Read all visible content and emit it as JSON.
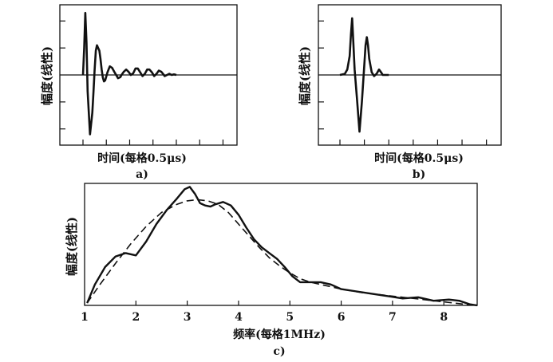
{
  "chart_data": [
    {
      "id": "a",
      "type": "line",
      "caption": "a)",
      "xlabel": "时间(每格0.5μs)",
      "ylabel": "幅度(线性)",
      "x_unit_label": "div",
      "xlim": [
        0,
        6.6
      ],
      "ylim": [
        -1.3,
        1.3
      ],
      "x_ticks": [
        0,
        1,
        2,
        3,
        4,
        5,
        6
      ],
      "y_ticks": [
        -1,
        -0.5,
        0.5,
        1
      ],
      "baseline_y": 0,
      "grid": false,
      "series": [
        {
          "x": [
            0,
            0.05,
            0.1,
            0.15,
            0.2,
            0.3,
            0.4,
            0.45,
            0.5,
            0.55,
            0.6,
            0.7,
            0.75,
            0.8,
            0.85,
            0.9,
            0.95,
            1.05,
            1.15,
            1.25,
            1.35,
            1.45,
            1.5,
            1.6,
            1.65,
            1.75,
            1.85,
            1.95,
            2.05,
            2.15,
            2.25,
            2.35,
            2.45,
            2.55,
            2.65,
            2.75,
            2.85,
            2.95,
            3.05,
            3.15,
            3.25,
            3.35,
            3.45,
            3.5,
            3.6,
            3.7,
            3.8,
            3.9,
            4.0
          ],
          "y": [
            0,
            0.5,
            1.15,
            0.6,
            -0.3,
            -1.1,
            -0.7,
            -0.3,
            0.1,
            0.45,
            0.55,
            0.45,
            0.3,
            0.1,
            -0.05,
            -0.12,
            -0.1,
            0.05,
            0.16,
            0.13,
            0.05,
            -0.02,
            -0.06,
            -0.04,
            0.0,
            0.06,
            0.1,
            0.06,
            0.0,
            0.03,
            0.12,
            0.12,
            0.05,
            -0.02,
            0.02,
            0.1,
            0.1,
            0.05,
            -0.02,
            0.02,
            0.08,
            0.06,
            0.01,
            -0.02,
            0.0,
            0.02,
            0.0,
            0.01,
            0.0
          ]
        }
      ]
    },
    {
      "id": "b",
      "type": "line",
      "caption": "b)",
      "xlabel": "时间(每格0.5μs)",
      "ylabel": "幅度(线性)",
      "xlim": [
        0,
        6.6
      ],
      "ylim": [
        -1.3,
        1.3
      ],
      "x_ticks": [
        0,
        1,
        2,
        3,
        4,
        5,
        6
      ],
      "y_ticks": [
        -1,
        -0.5,
        0.5,
        1
      ],
      "baseline_y": 0,
      "grid": false,
      "series": [
        {
          "x": [
            0,
            0.2,
            0.3,
            0.4,
            0.45,
            0.5,
            0.55,
            0.6,
            0.7,
            0.8,
            0.9,
            1.0,
            1.05,
            1.1,
            1.15,
            1.2,
            1.3,
            1.4,
            1.5,
            1.6,
            1.7,
            1.75,
            1.8,
            1.9,
            2.0
          ],
          "y": [
            0,
            0.02,
            0.1,
            0.35,
            0.75,
            1.05,
            0.6,
            0.1,
            -0.45,
            -1.05,
            -0.5,
            0.2,
            0.55,
            0.7,
            0.55,
            0.3,
            0.05,
            -0.02,
            0.02,
            0.1,
            0.04,
            0.0,
            0.0,
            0.0,
            0.0
          ]
        }
      ]
    },
    {
      "id": "c",
      "type": "line",
      "caption": "c)",
      "xlabel": "频率(每格1MHz)",
      "ylabel": "幅度(线性)",
      "xlim": [
        1,
        8.65
      ],
      "ylim": [
        0,
        1.05
      ],
      "x_ticks": [
        1,
        2,
        3,
        4,
        5,
        6,
        7,
        8
      ],
      "x_tick_labels": [
        "1",
        "2",
        "3",
        "4",
        "5",
        "6",
        "7",
        "8"
      ],
      "grid": false,
      "series": [
        {
          "style": "solid",
          "x": [
            1.05,
            1.2,
            1.4,
            1.6,
            1.8,
            2.0,
            2.2,
            2.4,
            2.6,
            2.8,
            2.95,
            3.05,
            3.15,
            3.25,
            3.35,
            3.45,
            3.55,
            3.7,
            3.85,
            4.0,
            4.15,
            4.3,
            4.45,
            4.6,
            4.75,
            4.9,
            5.05,
            5.2,
            5.4,
            5.6,
            5.8,
            6.0,
            6.3,
            6.6,
            6.9,
            7.2,
            7.5,
            7.8,
            8.1,
            8.3,
            8.5,
            8.65
          ],
          "y": [
            0.02,
            0.18,
            0.33,
            0.42,
            0.45,
            0.43,
            0.55,
            0.7,
            0.82,
            0.92,
            1.0,
            1.02,
            0.96,
            0.88,
            0.86,
            0.85,
            0.87,
            0.89,
            0.86,
            0.78,
            0.67,
            0.57,
            0.5,
            0.45,
            0.4,
            0.33,
            0.25,
            0.2,
            0.2,
            0.2,
            0.18,
            0.14,
            0.12,
            0.1,
            0.08,
            0.06,
            0.07,
            0.04,
            0.05,
            0.04,
            0.01,
            0.0
          ]
        },
        {
          "style": "dashed",
          "x": [
            1.05,
            1.3,
            1.6,
            1.9,
            2.2,
            2.5,
            2.8,
            3.0,
            3.2,
            3.4,
            3.6,
            3.8,
            4.0,
            4.2,
            4.4,
            4.6,
            4.8,
            5.0,
            5.2,
            5.4,
            5.7,
            6.0,
            6.4,
            6.8,
            7.2,
            7.6,
            8.0,
            8.4,
            8.65
          ],
          "y": [
            0.02,
            0.18,
            0.36,
            0.53,
            0.68,
            0.8,
            0.87,
            0.9,
            0.91,
            0.9,
            0.87,
            0.8,
            0.7,
            0.6,
            0.5,
            0.41,
            0.34,
            0.28,
            0.23,
            0.2,
            0.17,
            0.14,
            0.11,
            0.09,
            0.07,
            0.05,
            0.03,
            0.01,
            0.0
          ]
        }
      ]
    }
  ]
}
